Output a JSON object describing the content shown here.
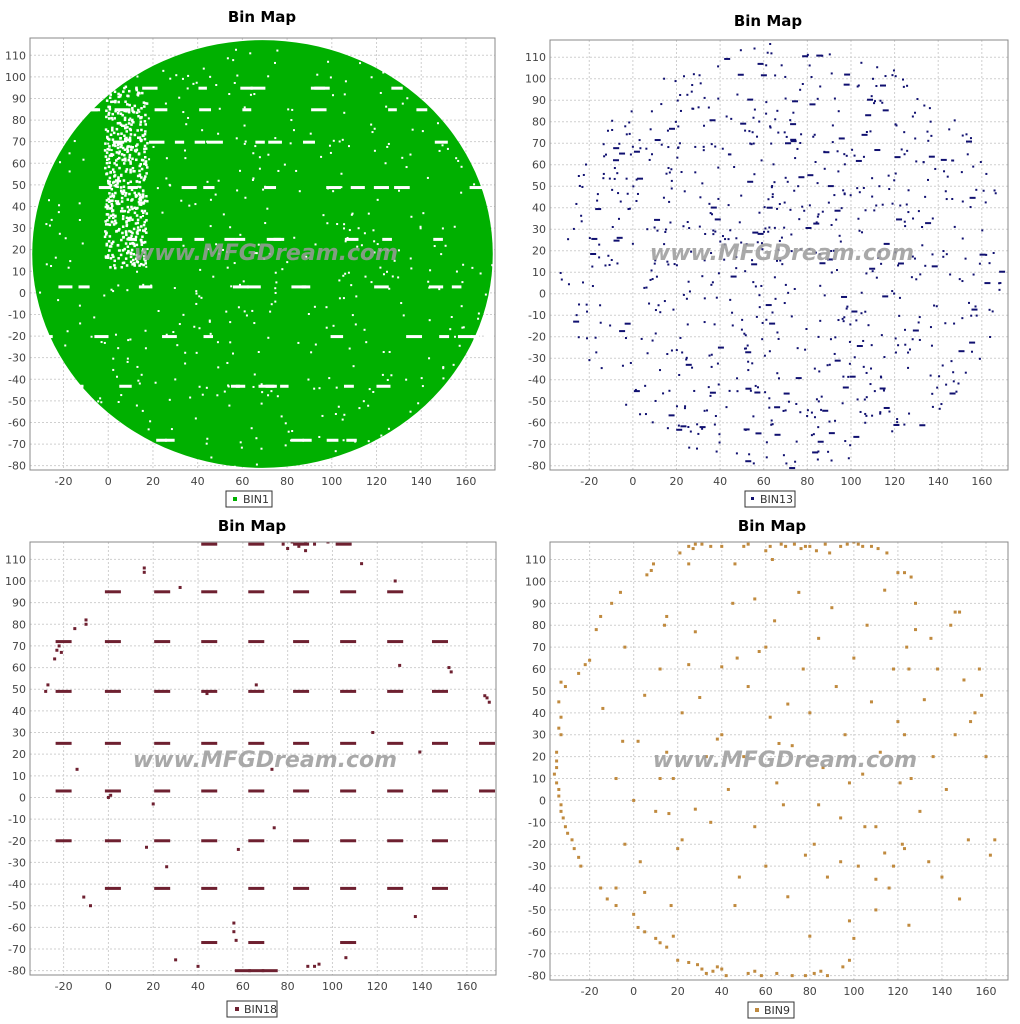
{
  "watermark": "www.MFGDream.com",
  "chart_data": [
    {
      "type": "scatter",
      "title": "Bin Map",
      "series": [
        {
          "name": "BIN1",
          "color": "#00b000"
        }
      ],
      "xlim": [
        -35,
        173
      ],
      "ylim": [
        -82,
        118
      ],
      "xticks": [
        -20,
        0,
        20,
        40,
        60,
        80,
        100,
        120,
        140,
        160
      ],
      "yticks": [
        -80,
        -70,
        -60,
        -50,
        -40,
        -30,
        -20,
        -10,
        0,
        10,
        20,
        30,
        40,
        50,
        60,
        70,
        80,
        90,
        100,
        110
      ],
      "rendering": "dense-fill",
      "fill_region": {
        "center": [
          69,
          18
        ],
        "radius_x": 103,
        "radius_y": 99
      },
      "white_gap_rows_y": [
        95,
        85,
        70,
        49,
        25,
        3,
        -20,
        -43,
        -68
      ],
      "sparse_column_x_range": [
        -2,
        17
      ],
      "grid": true,
      "legend": "bottom-center"
    },
    {
      "type": "scatter",
      "title": "Bin Map",
      "series": [
        {
          "name": "BIN13",
          "color": "#101070"
        }
      ],
      "xlim": [
        -38,
        172
      ],
      "ylim": [
        -82,
        118
      ],
      "xticks": [
        -20,
        0,
        20,
        40,
        60,
        80,
        100,
        120,
        140,
        160
      ],
      "yticks": [
        -80,
        -70,
        -60,
        -50,
        -40,
        -30,
        -20,
        -10,
        0,
        10,
        20,
        30,
        40,
        50,
        60,
        70,
        80,
        90,
        100,
        110
      ],
      "rendering": "sparse-random",
      "scatter_region": {
        "center": [
          69,
          18
        ],
        "radius_x": 103,
        "radius_y": 99
      },
      "point_count": 820,
      "grid": true,
      "legend": "bottom-center"
    },
    {
      "type": "scatter",
      "title": "Bin Map",
      "series": [
        {
          "name": "BIN18",
          "color": "#6e2030"
        }
      ],
      "xlim": [
        -35,
        173
      ],
      "ylim": [
        -82,
        118
      ],
      "xticks": [
        -20,
        0,
        20,
        40,
        60,
        80,
        100,
        120,
        140,
        160
      ],
      "yticks": [
        -80,
        -70,
        -60,
        -50,
        -40,
        -30,
        -20,
        -10,
        0,
        10,
        20,
        30,
        40,
        50,
        60,
        70,
        80,
        90,
        100,
        110
      ],
      "rendering": "points",
      "dash_rows": [
        {
          "y": 117,
          "x": [
            45,
            66,
            86,
            105
          ]
        },
        {
          "y": 95,
          "x": [
            2,
            24,
            45,
            66,
            86,
            107,
            128
          ]
        },
        {
          "y": 72,
          "x": [
            -20,
            2,
            24,
            45,
            66,
            86,
            107,
            128,
            148
          ]
        },
        {
          "y": 49,
          "x": [
            -20,
            2,
            24,
            45,
            66,
            86,
            107,
            128,
            148
          ]
        },
        {
          "y": 25,
          "x": [
            -20,
            2,
            24,
            45,
            66,
            86,
            107,
            128,
            148,
            169
          ]
        },
        {
          "y": 3,
          "x": [
            -20,
            2,
            24,
            45,
            66,
            86,
            107,
            128,
            148,
            169
          ]
        },
        {
          "y": -20,
          "x": [
            -20,
            2,
            24,
            45,
            66,
            86,
            107,
            128,
            148
          ]
        },
        {
          "y": -42,
          "x": [
            2,
            24,
            45,
            66,
            86,
            107,
            128,
            148
          ]
        },
        {
          "y": -67,
          "x": [
            45,
            66,
            107
          ]
        },
        {
          "y": -80,
          "x": [
            60,
            66,
            72
          ]
        }
      ],
      "points": [
        [
          -28,
          49
        ],
        [
          -27,
          52
        ],
        [
          -24,
          64
        ],
        [
          -23,
          68
        ],
        [
          -22,
          70
        ],
        [
          -21,
          67
        ],
        [
          -15,
          78
        ],
        [
          -10,
          80
        ],
        [
          -10,
          82
        ],
        [
          -14,
          13
        ],
        [
          -11,
          -46
        ],
        [
          -8,
          -50
        ],
        [
          0,
          0
        ],
        [
          1,
          1
        ],
        [
          16,
          104
        ],
        [
          16,
          106
        ],
        [
          17,
          -23
        ],
        [
          20,
          -3
        ],
        [
          26,
          -32
        ],
        [
          32,
          97
        ],
        [
          30,
          -75
        ],
        [
          40,
          -78
        ],
        [
          44,
          48
        ],
        [
          56,
          -62
        ],
        [
          56,
          -58
        ],
        [
          57,
          -66
        ],
        [
          58,
          -24
        ],
        [
          66,
          52
        ],
        [
          73,
          13
        ],
        [
          74,
          -14
        ],
        [
          78,
          117
        ],
        [
          80,
          115
        ],
        [
          82,
          118
        ],
        [
          85,
          116
        ],
        [
          88,
          118
        ],
        [
          88,
          114
        ],
        [
          92,
          117
        ],
        [
          98,
          118
        ],
        [
          106,
          -74
        ],
        [
          108,
          -67
        ],
        [
          113,
          108
        ],
        [
          118,
          30
        ],
        [
          128,
          100
        ],
        [
          130,
          61
        ],
        [
          137,
          -55
        ],
        [
          139,
          21
        ],
        [
          152,
          60
        ],
        [
          153,
          58
        ],
        [
          168,
          47
        ],
        [
          170,
          44
        ],
        [
          169,
          46
        ],
        [
          89,
          -78
        ],
        [
          92,
          -78
        ],
        [
          94,
          -77
        ]
      ],
      "grid": true,
      "legend": "bottom-center"
    },
    {
      "type": "scatter",
      "title": "Bin Map",
      "series": [
        {
          "name": "BIN9",
          "color": "#c08a3e"
        }
      ],
      "xlim": [
        -38,
        170
      ],
      "ylim": [
        -82,
        118
      ],
      "xticks": [
        -20,
        0,
        20,
        40,
        60,
        80,
        100,
        120,
        140,
        160
      ],
      "yticks": [
        -80,
        -70,
        -60,
        -50,
        -40,
        -30,
        -20,
        -10,
        0,
        10,
        20,
        30,
        40,
        50,
        60,
        70,
        80,
        90,
        100,
        110
      ],
      "rendering": "points",
      "points": [
        [
          -35,
          22
        ],
        [
          -35,
          18
        ],
        [
          -35,
          15
        ],
        [
          -36,
          12
        ],
        [
          -35,
          8
        ],
        [
          -34,
          5
        ],
        [
          -34,
          2
        ],
        [
          -33,
          -2
        ],
        [
          -33,
          -5
        ],
        [
          -32,
          -8
        ],
        [
          -31,
          -12
        ],
        [
          -30,
          -15
        ],
        [
          -28,
          -18
        ],
        [
          -27,
          -22
        ],
        [
          -25,
          -26
        ],
        [
          -24,
          -30
        ],
        [
          -33,
          54
        ],
        [
          -31,
          52
        ],
        [
          -34,
          45
        ],
        [
          -33,
          38
        ],
        [
          -33,
          30
        ],
        [
          -34,
          33
        ],
        [
          -25,
          58
        ],
        [
          -22,
          62
        ],
        [
          -20,
          64
        ],
        [
          -17,
          78
        ],
        [
          -15,
          84
        ],
        [
          -10,
          90
        ],
        [
          -6,
          95
        ],
        [
          -4,
          70
        ],
        [
          6,
          103
        ],
        [
          8,
          105
        ],
        [
          9,
          108
        ],
        [
          12,
          60
        ],
        [
          14,
          80
        ],
        [
          15,
          84
        ],
        [
          21,
          113
        ],
        [
          25,
          108
        ],
        [
          25,
          116
        ],
        [
          27,
          115
        ],
        [
          28,
          117
        ],
        [
          31,
          117
        ],
        [
          35,
          116
        ],
        [
          40,
          116
        ],
        [
          46,
          108
        ],
        [
          50,
          116
        ],
        [
          52,
          117
        ],
        [
          60,
          114
        ],
        [
          62,
          116
        ],
        [
          63,
          110
        ],
        [
          67,
          117
        ],
        [
          69,
          116
        ],
        [
          73,
          117
        ],
        [
          76,
          115
        ],
        [
          78,
          116
        ],
        [
          80,
          116
        ],
        [
          83,
          114
        ],
        [
          87,
          117
        ],
        [
          89,
          113
        ],
        [
          94,
          116
        ],
        [
          97,
          117
        ],
        [
          100,
          118
        ],
        [
          102,
          117
        ],
        [
          104,
          116
        ],
        [
          108,
          116
        ],
        [
          111,
          115
        ],
        [
          115,
          113
        ],
        [
          120,
          104
        ],
        [
          123,
          104
        ],
        [
          126,
          102
        ],
        [
          -15,
          -40
        ],
        [
          -12,
          -45
        ],
        [
          -8,
          -48
        ],
        [
          2,
          -58
        ],
        [
          5,
          -60
        ],
        [
          10,
          -63
        ],
        [
          12,
          -65
        ],
        [
          15,
          -67
        ],
        [
          18,
          -62
        ],
        [
          20,
          -73
        ],
        [
          25,
          -74
        ],
        [
          29,
          -75
        ],
        [
          31,
          -77
        ],
        [
          33,
          -79
        ],
        [
          36,
          -78
        ],
        [
          38,
          -76
        ],
        [
          40,
          -77
        ],
        [
          42,
          -80
        ],
        [
          52,
          -79
        ],
        [
          55,
          -78
        ],
        [
          58,
          -80
        ],
        [
          65,
          -79
        ],
        [
          72,
          -80
        ],
        [
          78,
          -80
        ],
        [
          82,
          -79
        ],
        [
          85,
          -78
        ],
        [
          88,
          -80
        ],
        [
          95,
          -76
        ],
        [
          98,
          -73
        ],
        [
          110,
          -50
        ],
        [
          100,
          -63
        ],
        [
          80,
          -62
        ],
        [
          125,
          -57
        ],
        [
          -14,
          42
        ],
        [
          -5,
          27
        ],
        [
          -8,
          10
        ],
        [
          -4,
          -20
        ],
        [
          -8,
          -40
        ],
        [
          0,
          -52
        ],
        [
          3,
          -28
        ],
        [
          5,
          -42
        ],
        [
          10,
          -5
        ],
        [
          12,
          10
        ],
        [
          15,
          22
        ],
        [
          20,
          -22
        ],
        [
          22,
          40
        ],
        [
          25,
          62
        ],
        [
          28,
          77
        ],
        [
          30,
          47
        ],
        [
          35,
          -10
        ],
        [
          38,
          28
        ],
        [
          40,
          61
        ],
        [
          43,
          5
        ],
        [
          45,
          90
        ],
        [
          46,
          -48
        ],
        [
          48,
          -35
        ],
        [
          50,
          20
        ],
        [
          52,
          52
        ],
        [
          55,
          -12
        ],
        [
          57,
          68
        ],
        [
          60,
          -30
        ],
        [
          62,
          38
        ],
        [
          64,
          82
        ],
        [
          65,
          8
        ],
        [
          68,
          -2
        ],
        [
          70,
          -44
        ],
        [
          72,
          25
        ],
        [
          75,
          95
        ],
        [
          77,
          60
        ],
        [
          78,
          -25
        ],
        [
          80,
          40
        ],
        [
          82,
          -20
        ],
        [
          84,
          74
        ],
        [
          86,
          15
        ],
        [
          88,
          -35
        ],
        [
          90,
          88
        ],
        [
          92,
          52
        ],
        [
          94,
          -8
        ],
        [
          96,
          30
        ],
        [
          98,
          -55
        ],
        [
          100,
          65
        ],
        [
          102,
          -30
        ],
        [
          104,
          12
        ],
        [
          106,
          80
        ],
        [
          108,
          45
        ],
        [
          110,
          -12
        ],
        [
          112,
          22
        ],
        [
          114,
          96
        ],
        [
          116,
          -40
        ],
        [
          118,
          60
        ],
        [
          120,
          36
        ],
        [
          122,
          -20
        ],
        [
          124,
          70
        ],
        [
          126,
          10
        ],
        [
          128,
          90
        ],
        [
          130,
          -5
        ],
        [
          132,
          46
        ],
        [
          134,
          -28
        ],
        [
          136,
          20
        ],
        [
          138,
          60
        ],
        [
          140,
          -35
        ],
        [
          142,
          5
        ],
        [
          144,
          80
        ],
        [
          146,
          30
        ],
        [
          148,
          -45
        ],
        [
          150,
          55
        ],
        [
          152,
          -18
        ],
        [
          155,
          40
        ],
        [
          158,
          48
        ],
        [
          160,
          20
        ],
        [
          162,
          -25
        ],
        [
          164,
          -18
        ],
        [
          146,
          86
        ],
        [
          148,
          86
        ],
        [
          153,
          36
        ],
        [
          157,
          60
        ],
        [
          135,
          74
        ],
        [
          128,
          78
        ],
        [
          125,
          60
        ],
        [
          123,
          30
        ],
        [
          121,
          8
        ],
        [
          123,
          -22
        ],
        [
          118,
          -30
        ],
        [
          114,
          -24
        ],
        [
          110,
          -36
        ],
        [
          105,
          -12
        ],
        [
          98,
          8
        ],
        [
          94,
          -28
        ],
        [
          84,
          -2
        ],
        [
          70,
          44
        ],
        [
          66,
          26
        ],
        [
          60,
          70
        ],
        [
          55,
          92
        ],
        [
          47,
          65
        ],
        [
          40,
          30
        ],
        [
          33,
          20
        ],
        [
          28,
          -4
        ],
        [
          22,
          -18
        ],
        [
          17,
          -48
        ],
        [
          16,
          -6
        ],
        [
          18,
          10
        ],
        [
          5,
          48
        ],
        [
          2,
          27
        ],
        [
          0,
          0
        ]
      ],
      "grid": true,
      "legend": "bottom-center"
    }
  ]
}
